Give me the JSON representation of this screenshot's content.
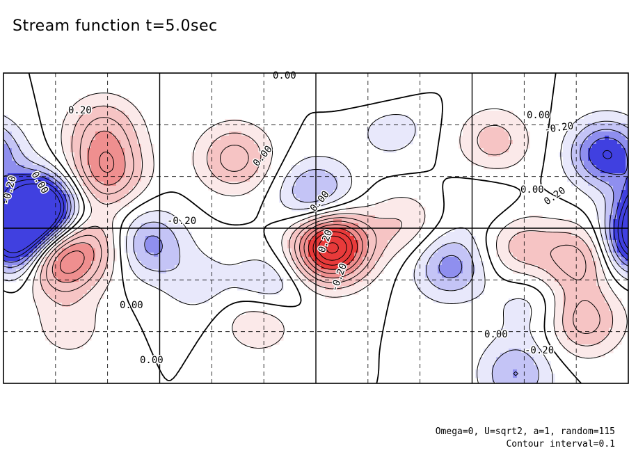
{
  "chart_data": {
    "type": "contour",
    "title": "Stream function t=5.0sec",
    "notes": [
      "Omega=0, U=sqrt2, a=1, random=115",
      "Contour interval=0.1"
    ],
    "contour_interval": 0.1,
    "labeled_levels": [
      "0.00",
      "0.20",
      "-0.20"
    ],
    "colors": {
      "positive_light": "#fbe9e9",
      "positive_mid": "#f6c4c4",
      "positive_strong": "#ef8f8f",
      "positive_peak": "#e83a3a",
      "negative_light": "#e8e8fb",
      "negative_mid": "#c4c4f6",
      "negative_strong": "#8f8fef",
      "negative_peak": "#4040e0",
      "contour": "#000000"
    },
    "grid": {
      "dashed_divisions_x": 12,
      "dashed_divisions_y": 6,
      "solid_divisions_x": 4,
      "solid_divisions_y": 2
    },
    "features": [
      {
        "sign": 1,
        "x": 0.165,
        "y": 0.32,
        "amp": 0.45
      },
      {
        "sign": 1,
        "x": 0.15,
        "y": 0.55,
        "amp": 0.25
      },
      {
        "sign": 1,
        "x": 0.16,
        "y": 0.18,
        "amp": 0.3
      },
      {
        "sign": 1,
        "x": 0.095,
        "y": 0.62,
        "amp": 0.3
      },
      {
        "sign": 1,
        "x": 0.105,
        "y": 0.82,
        "amp": 0.15
      },
      {
        "sign": 1,
        "x": 0.37,
        "y": 0.275,
        "amp": 0.35
      },
      {
        "sign": 1,
        "x": 0.41,
        "y": 0.78,
        "amp": 0.3
      },
      {
        "sign": 1,
        "x": 0.525,
        "y": 0.56,
        "amp": 0.95
      },
      {
        "sign": 1,
        "x": 0.64,
        "y": 0.49,
        "amp": 0.2
      },
      {
        "sign": 1,
        "x": 0.785,
        "y": 0.22,
        "amp": 0.25
      },
      {
        "sign": 1,
        "x": 0.825,
        "y": 0.56,
        "amp": 0.25
      },
      {
        "sign": 1,
        "x": 0.92,
        "y": 0.6,
        "amp": 0.35
      },
      {
        "sign": 1,
        "x": 1.08,
        "y": 0.58,
        "amp": 0.35
      },
      {
        "sign": 1,
        "x": 0.93,
        "y": 0.8,
        "amp": 0.35
      },
      {
        "sign": 1,
        "x": 0.605,
        "y": 0.05,
        "amp": 0.12
      },
      {
        "sign": -1,
        "x": 0.055,
        "y": 0.44,
        "amp": 0.5
      },
      {
        "sign": -1,
        "x": 1.055,
        "y": 0.44,
        "amp": 0.5
      },
      {
        "sign": -1,
        "x": 0.02,
        "y": 0.55,
        "amp": 0.35
      },
      {
        "sign": -1,
        "x": 1.02,
        "y": 0.55,
        "amp": 0.35
      },
      {
        "sign": -1,
        "x": 0.23,
        "y": 0.55,
        "amp": 0.35
      },
      {
        "sign": -1,
        "x": 0.5,
        "y": 0.39,
        "amp": 0.35
      },
      {
        "sign": -1,
        "x": 0.42,
        "y": 0.7,
        "amp": 0.3
      },
      {
        "sign": -1,
        "x": 0.31,
        "y": 0.68,
        "amp": 0.15
      },
      {
        "sign": -1,
        "x": 0.715,
        "y": 0.62,
        "amp": 0.35
      },
      {
        "sign": -1,
        "x": 0.965,
        "y": 0.26,
        "amp": 0.5
      },
      {
        "sign": -1,
        "x": 0.82,
        "y": 0.97,
        "amp": 0.3
      },
      {
        "sign": -1,
        "x": 0.62,
        "y": 0.17,
        "amp": 0.18
      },
      {
        "sign": -1,
        "x": 0.84,
        "y": 0.75,
        "amp": 0.15
      },
      {
        "sign": -1,
        "x": 0.77,
        "y": 0.42,
        "amp": 0.1
      }
    ]
  }
}
